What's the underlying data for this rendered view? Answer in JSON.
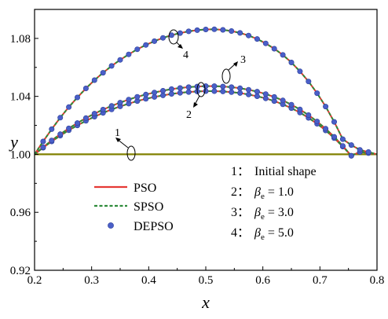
{
  "chart_data": {
    "type": "line",
    "xlabel": "x",
    "ylabel": "y",
    "xlim": [
      0.2,
      0.8
    ],
    "ylim": [
      0.92,
      1.1
    ],
    "x_ticks": [
      "0.2",
      "0.3",
      "0.4",
      "0.5",
      "0.6",
      "0.7",
      "0.8"
    ],
    "y_ticks": [
      "0.92",
      "0.96",
      "1.00",
      "1.04",
      "1.08"
    ],
    "grid": false,
    "legend_placement": "bottom-left",
    "legend": [
      {
        "name": "PSO",
        "style": "solid line",
        "color": "#e53935"
      },
      {
        "name": "SPSO",
        "style": "dashed line",
        "color": "#2e8b3a"
      },
      {
        "name": "DEPSO",
        "style": "marker",
        "color": "#4a5fc8"
      }
    ],
    "cases": [
      {
        "num": "1：",
        "label": "Initial shape"
      },
      {
        "num": "2：",
        "beta": "β",
        "sub": "e",
        "rest": " = 1.0"
      },
      {
        "num": "3：",
        "beta": "β",
        "sub": "e",
        "rest": " = 3.0"
      },
      {
        "num": "4：",
        "beta": "β",
        "sub": "e",
        "rest": " = 5.0"
      }
    ],
    "annotations": [
      "1",
      "2",
      "3",
      "4"
    ],
    "series": [
      {
        "case": "1",
        "x": [
          0.2,
          0.8
        ],
        "y": [
          1.0,
          1.0
        ],
        "color": "#808000"
      },
      {
        "case": "2",
        "x": [
          0.2,
          0.215,
          0.23,
          0.245,
          0.26,
          0.275,
          0.29,
          0.305,
          0.32,
          0.335,
          0.35,
          0.365,
          0.38,
          0.395,
          0.41,
          0.425,
          0.44,
          0.455,
          0.47,
          0.485,
          0.5,
          0.515,
          0.53,
          0.545,
          0.56,
          0.575,
          0.59,
          0.605,
          0.62,
          0.635,
          0.65,
          0.665,
          0.68,
          0.695,
          0.71,
          0.725,
          0.74,
          0.755,
          0.77,
          0.785,
          0.8
        ],
        "y": [
          1.0,
          1.0046,
          1.0089,
          1.0129,
          1.0166,
          1.02,
          1.0231,
          1.026,
          1.0286,
          1.031,
          1.0331,
          1.035,
          1.0368,
          1.0383,
          1.0396,
          1.0407,
          1.0417,
          1.0424,
          1.043,
          1.0434,
          1.0436,
          1.0436,
          1.0434,
          1.0429,
          1.0423,
          1.0413,
          1.0401,
          1.0386,
          1.0368,
          1.0345,
          1.0319,
          1.0288,
          1.0252,
          1.0211,
          1.0165,
          1.0112,
          1.0054,
          0.999,
          1.0016,
          1.0009,
          1.0
        ]
      },
      {
        "case": "3",
        "x": [
          0.2,
          0.215,
          0.23,
          0.245,
          0.26,
          0.275,
          0.29,
          0.305,
          0.32,
          0.335,
          0.35,
          0.365,
          0.38,
          0.395,
          0.41,
          0.425,
          0.44,
          0.455,
          0.47,
          0.485,
          0.5,
          0.515,
          0.53,
          0.545,
          0.56,
          0.575,
          0.59,
          0.605,
          0.62,
          0.635,
          0.65,
          0.665,
          0.68,
          0.695,
          0.71,
          0.725,
          0.74,
          0.755,
          0.77,
          0.785,
          0.8
        ],
        "y": [
          1.0,
          1.0049,
          1.0096,
          1.0139,
          1.0179,
          1.0216,
          1.025,
          1.0281,
          1.0309,
          1.0334,
          1.0357,
          1.0378,
          1.0397,
          1.0413,
          1.0427,
          1.0439,
          1.045,
          1.0458,
          1.0464,
          1.0468,
          1.0471,
          1.0471,
          1.0468,
          1.0464,
          1.0456,
          1.0446,
          1.0433,
          1.0416,
          1.0396,
          1.0372,
          1.0343,
          1.031,
          1.0271,
          1.0227,
          1.0177,
          1.0121,
          1.0058,
          0.999,
          1.0017,
          1.0009,
          1.0
        ]
      },
      {
        "case": "4",
        "x": [
          0.2,
          0.215,
          0.23,
          0.245,
          0.26,
          0.275,
          0.29,
          0.305,
          0.32,
          0.335,
          0.35,
          0.365,
          0.38,
          0.395,
          0.41,
          0.425,
          0.44,
          0.455,
          0.47,
          0.485,
          0.5,
          0.515,
          0.53,
          0.545,
          0.56,
          0.575,
          0.59,
          0.605,
          0.62,
          0.635,
          0.65,
          0.665,
          0.68,
          0.695,
          0.71,
          0.725,
          0.74,
          0.755,
          0.77,
          0.785,
          0.8
        ],
        "y": [
          1.0,
          1.0089,
          1.0174,
          1.0253,
          1.0326,
          1.0393,
          1.0455,
          1.0512,
          1.0563,
          1.061,
          1.0652,
          1.069,
          1.0725,
          1.0755,
          1.0781,
          1.0804,
          1.0822,
          1.0837,
          1.0849,
          1.0857,
          1.0862,
          1.0863,
          1.0859,
          1.0851,
          1.0838,
          1.082,
          1.0796,
          1.0766,
          1.0729,
          1.0686,
          1.0634,
          1.0573,
          1.0503,
          1.0422,
          1.033,
          1.0224,
          1.0105,
          1.0064,
          1.0031,
          1.0016,
          1.0
        ]
      }
    ]
  }
}
